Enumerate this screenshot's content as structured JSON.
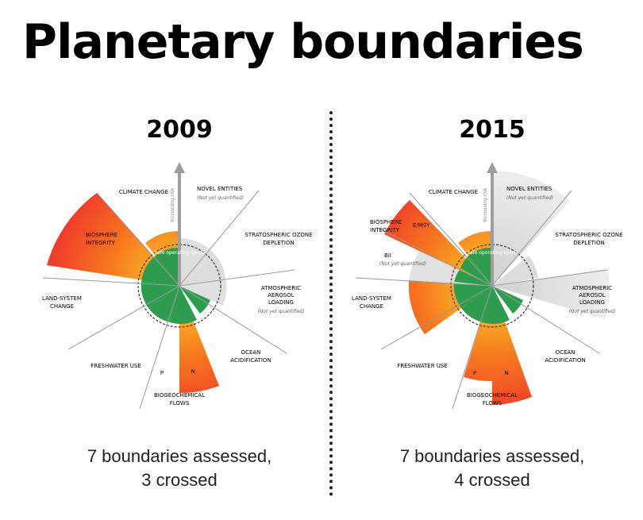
{
  "page": {
    "title": "Planetary boundaries"
  },
  "colors": {
    "safe": "#2e9c4e",
    "safe_dark": "#1f7a3a",
    "orange": "#f7931e",
    "red": "#f04e2f",
    "grey": "#e4e4e4",
    "line": "#9a9a9a"
  },
  "panels": [
    {
      "year": "2009",
      "summary_line1": "7 boundaries assessed,",
      "summary_line2": "3 crossed",
      "arrow_label": "Increasing risk",
      "safe_label": "Safe operating space",
      "labels": {
        "climate": "CLIMATE CHANGE",
        "novel_l1": "NOVEL ENTITIES",
        "novel_l2": "(Not yet quantified)",
        "ozone_l1": "STRATOSPHERIC OZONE",
        "ozone_l2": "DEPLETION",
        "aerosol_l1": "ATMOSPHERIC",
        "aerosol_l2": "AEROSOL",
        "aerosol_l3": "LOADING",
        "aerosol_l4": "(Not yet quantified)",
        "ocean_l1": "OCEAN",
        "ocean_l2": "ACIDIFICATION",
        "bio_l1": "BIOGEOCHEMICAL",
        "bio_l2": "FLOWS",
        "p": "P",
        "n": "N",
        "freshwater": "FRESHWATER USE",
        "land_l1": "LAND-SYSTEM",
        "land_l2": "CHANGE",
        "biosphere_l1": "BIOSPHERE",
        "biosphere_l2": "INTEGRITY"
      }
    },
    {
      "year": "2015",
      "summary_line1": "7 boundaries assessed,",
      "summary_line2": "4 crossed",
      "arrow_label": "Increasing risk",
      "safe_label": "Safe operating space",
      "labels": {
        "climate": "CLIMATE CHANGE",
        "novel_l1": "NOVEL ENTITIES",
        "novel_l2": "(Not yet quantified)",
        "ozone_l1": "STRATOSPHERIC OZONE",
        "ozone_l2": "DEPLETION",
        "aerosol_l1": "ATMOSPHERIC",
        "aerosol_l2": "AEROSOL",
        "aerosol_l3": "LOADING",
        "aerosol_l4": "(Not yet quantified)",
        "ocean_l1": "OCEAN",
        "ocean_l2": "ACIDIFICATION",
        "bio_l1": "BIOGEOCHEMICAL",
        "bio_l2": "FLOWS",
        "p": "P",
        "n": "N",
        "freshwater": "FRESHWATER USE",
        "land_l1": "LAND-SYSTEM",
        "land_l2": "CHANGE",
        "biosphere_l1": "BIOSPHERE",
        "biosphere_l2": "INTEGRITY",
        "emsy": "E/MSY",
        "bii_l1": "BII",
        "bii_l2": "(Not yet quantified)"
      }
    }
  ]
}
